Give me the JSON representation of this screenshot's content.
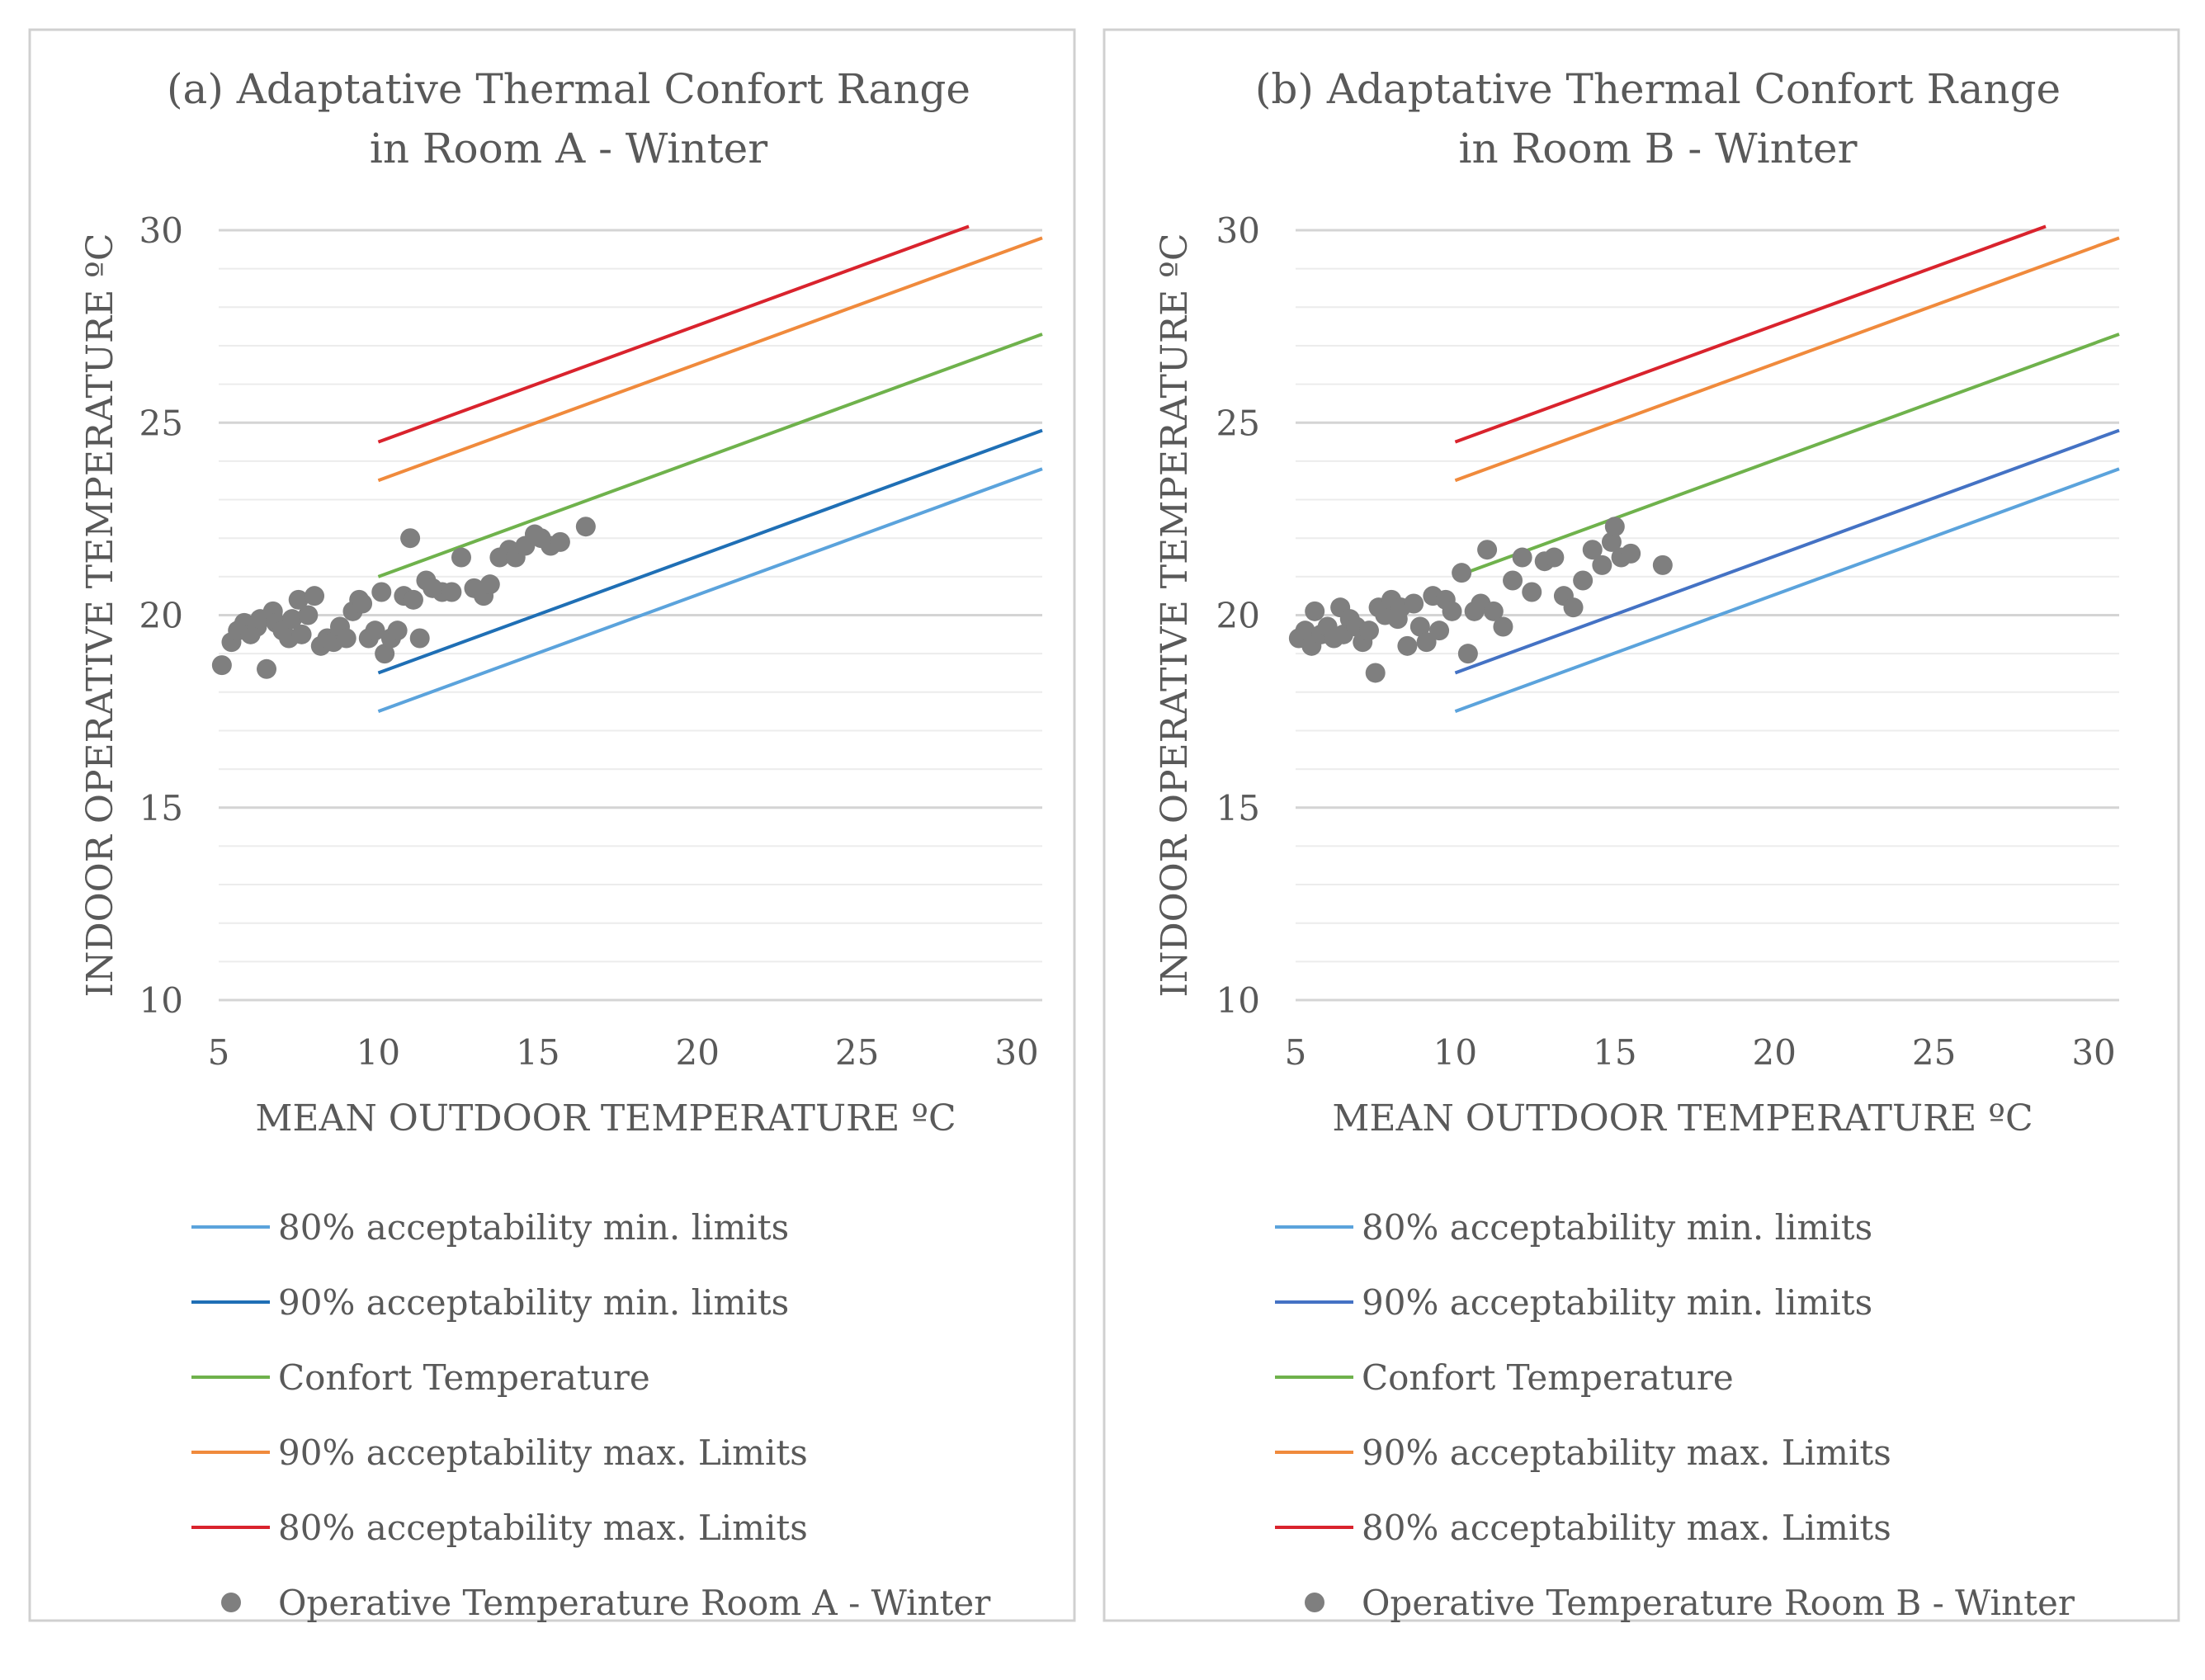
{
  "chart_data": [
    {
      "type": "line+scatter",
      "title_line1": "(a) Adaptative Thermal Confort Range",
      "title_line2": "in Room A - Winter",
      "xlabel": "MEAN OUTDOOR TEMPERATURE  ºC",
      "ylabel": "INDOOR OPERATIVE TEMPERATURE  ºC",
      "xlim": [
        5,
        30.8
      ],
      "ylim": [
        10,
        30
      ],
      "xticks": [
        "5",
        "10",
        "15",
        "20",
        "25",
        "30"
      ],
      "yticks": [
        "10",
        "15",
        "20",
        "25",
        "30"
      ],
      "grid": true,
      "legend_position": "bottom",
      "series": [
        {
          "name": "80% acceptability min. limits",
          "kind": "line",
          "color": "#5ba3dc",
          "x": [
            10,
            30.8
          ],
          "y": [
            17.5,
            23.8
          ]
        },
        {
          "name": "90% acceptability min. limits",
          "kind": "line",
          "color": "#1f6fb5",
          "x": [
            10,
            30.8
          ],
          "y": [
            18.5,
            24.8
          ]
        },
        {
          "name": "Confort Temperature",
          "kind": "line",
          "color": "#6fb24c",
          "x": [
            10,
            30.8
          ],
          "y": [
            21.0,
            27.3
          ]
        },
        {
          "name": "90% acceptability max. Limits",
          "kind": "line",
          "color": "#f08a3c",
          "x": [
            10,
            30.8
          ],
          "y": [
            23.5,
            29.8
          ]
        },
        {
          "name": "80% acceptability max. Limits",
          "kind": "line",
          "color": "#d9232d",
          "x": [
            10,
            28.5
          ],
          "y": [
            24.5,
            30.1
          ]
        },
        {
          "name": "Operative Temperature Room A - Winter",
          "kind": "scatter",
          "color": "#7f7f7f",
          "x": [
            5.1,
            5.4,
            5.6,
            5.8,
            6.0,
            6.2,
            6.3,
            6.5,
            6.7,
            6.8,
            7.0,
            7.2,
            7.3,
            7.5,
            7.6,
            7.8,
            8.0,
            8.2,
            8.4,
            8.6,
            8.8,
            9.0,
            9.2,
            9.4,
            9.5,
            9.7,
            9.9,
            10.1,
            10.2,
            10.4,
            10.6,
            10.8,
            11.0,
            11.1,
            11.3,
            11.5,
            11.7,
            12.0,
            12.3,
            12.6,
            13.0,
            13.3,
            13.5,
            13.8,
            14.1,
            14.3,
            14.6,
            14.9,
            15.1,
            15.4,
            15.7,
            16.5
          ],
          "y": [
            18.7,
            19.3,
            19.6,
            19.8,
            19.5,
            19.7,
            19.9,
            18.6,
            20.1,
            19.8,
            19.6,
            19.4,
            19.9,
            20.4,
            19.5,
            20.0,
            20.5,
            19.2,
            19.4,
            19.3,
            19.7,
            19.4,
            20.1,
            20.4,
            20.3,
            19.4,
            19.6,
            20.6,
            19.0,
            19.4,
            19.6,
            20.5,
            22.0,
            20.4,
            19.4,
            20.9,
            20.7,
            20.6,
            20.6,
            21.5,
            20.7,
            20.5,
            20.8,
            21.5,
            21.7,
            21.5,
            21.8,
            22.1,
            22.0,
            21.8,
            21.9,
            22.3
          ]
        }
      ]
    },
    {
      "type": "line+scatter",
      "title_line1": "(b) Adaptative Thermal Confort Range",
      "title_line2": "in Room B - Winter",
      "xlabel": "MEAN OUTDOOR TEMPERATURE  ºC",
      "ylabel": "INDOOR OPERATIVE TEMPERATURE  ºC",
      "xlim": [
        5,
        30.8
      ],
      "ylim": [
        10,
        30
      ],
      "xticks": [
        "5",
        "10",
        "15",
        "20",
        "25",
        "30"
      ],
      "yticks": [
        "10",
        "15",
        "20",
        "25",
        "30"
      ],
      "grid": true,
      "legend_position": "bottom",
      "series": [
        {
          "name": "80% acceptability min. limits",
          "kind": "line",
          "color": "#5ba3dc",
          "x": [
            10,
            30.8
          ],
          "y": [
            17.5,
            23.8
          ]
        },
        {
          "name": "90% acceptability min. limits",
          "kind": "line",
          "color": "#4472c4",
          "x": [
            10,
            30.8
          ],
          "y": [
            18.5,
            24.8
          ]
        },
        {
          "name": "Confort Temperature",
          "kind": "line",
          "color": "#6fb24c",
          "x": [
            10,
            30.8
          ],
          "y": [
            21.0,
            27.3
          ]
        },
        {
          "name": "90% acceptability max. Limits",
          "kind": "line",
          "color": "#f08a3c",
          "x": [
            10,
            30.8
          ],
          "y": [
            23.5,
            29.8
          ]
        },
        {
          "name": "80% acceptability max. Limits",
          "kind": "line",
          "color": "#d9232d",
          "x": [
            10,
            28.5
          ],
          "y": [
            24.5,
            30.1
          ]
        },
        {
          "name": "Operative Temperature Room B - Winter",
          "kind": "scatter",
          "color": "#7f7f7f",
          "x": [
            5.1,
            5.3,
            5.5,
            5.6,
            5.8,
            6.0,
            6.2,
            6.4,
            6.5,
            6.7,
            6.9,
            7.1,
            7.3,
            7.5,
            7.6,
            7.8,
            8.0,
            8.2,
            8.3,
            8.5,
            8.7,
            8.9,
            9.1,
            9.3,
            9.5,
            9.7,
            9.9,
            10.2,
            10.4,
            10.6,
            10.8,
            11.0,
            11.2,
            11.5,
            11.8,
            12.1,
            12.4,
            12.8,
            13.1,
            13.4,
            13.7,
            14.0,
            14.3,
            14.6,
            14.9,
            15.0,
            15.2,
            15.5,
            16.5
          ],
          "y": [
            19.4,
            19.6,
            19.2,
            20.1,
            19.5,
            19.7,
            19.4,
            20.2,
            19.5,
            19.9,
            19.7,
            19.3,
            19.6,
            18.5,
            20.2,
            20.0,
            20.4,
            19.9,
            20.2,
            19.2,
            20.3,
            19.7,
            19.3,
            20.5,
            19.6,
            20.4,
            20.1,
            21.1,
            19.0,
            20.1,
            20.3,
            21.7,
            20.1,
            19.7,
            20.9,
            21.5,
            20.6,
            21.4,
            21.5,
            20.5,
            20.2,
            20.9,
            21.7,
            21.3,
            21.9,
            22.3,
            21.5,
            21.6,
            21.3
          ]
        }
      ]
    }
  ]
}
